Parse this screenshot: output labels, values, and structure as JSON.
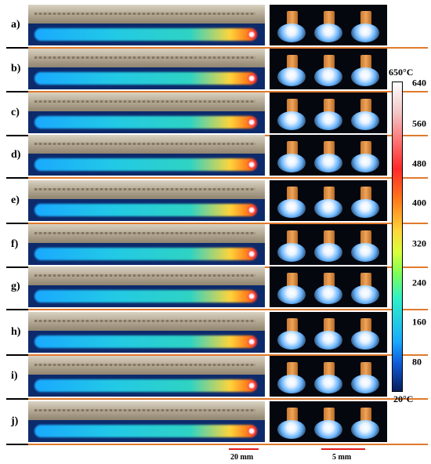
{
  "rows": [
    {
      "label": "a)"
    },
    {
      "label": "b)"
    },
    {
      "label": "c)"
    },
    {
      "label": "d)"
    },
    {
      "label": "e)"
    },
    {
      "label": "f)"
    },
    {
      "label": "g)"
    },
    {
      "label": "h)"
    },
    {
      "label": "i)"
    },
    {
      "label": "j)"
    }
  ],
  "colorbar": {
    "top_label": "650°C",
    "bottom_label": "20°C",
    "ticks": [
      "640",
      "560",
      "480",
      "400",
      "320",
      "240",
      "160",
      "80"
    ]
  },
  "scale_bars": {
    "left": "20 mm",
    "right": "5 mm"
  },
  "colors": {
    "separator": "#e07a2c",
    "scalebar": "#e31b1b"
  }
}
